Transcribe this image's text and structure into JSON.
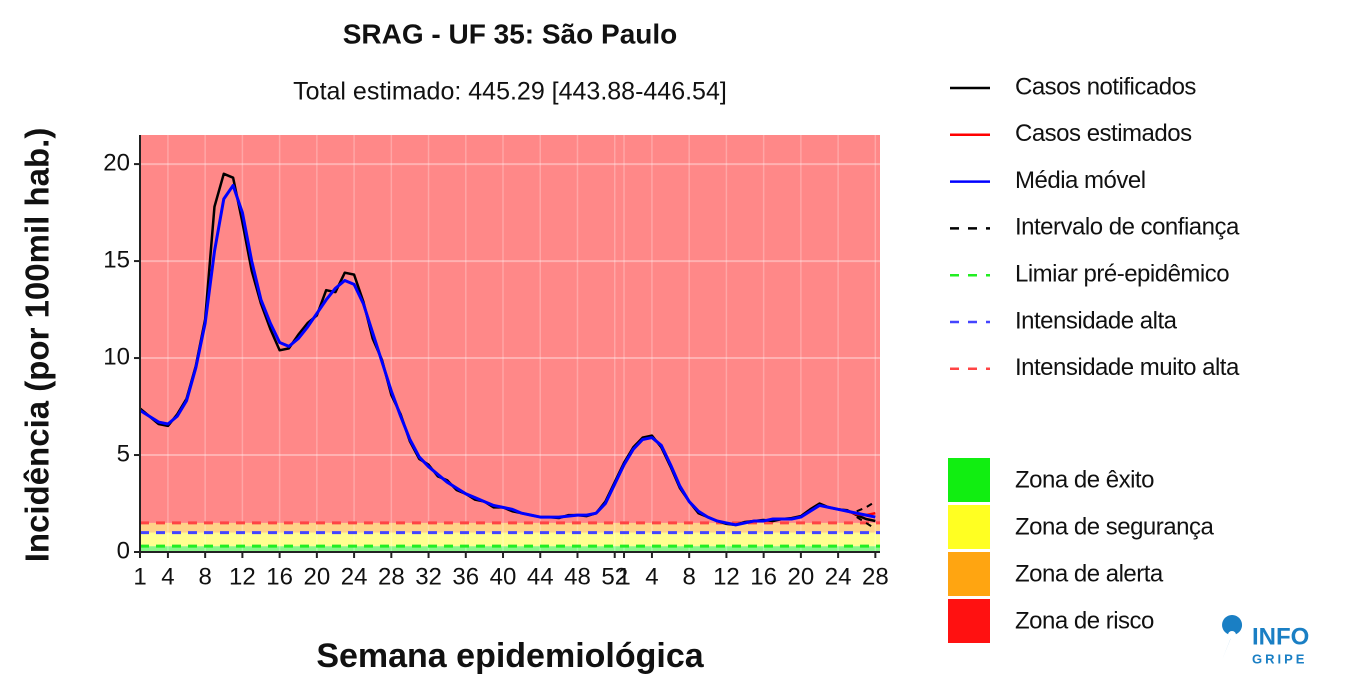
{
  "chart_data": {
    "type": "line",
    "title": "SRAG - UF 35: São Paulo",
    "subtitle": "Total estimado: 445.29 [443.88-446.54]",
    "x_label": "Semana epidemiológica",
    "y_label": "Incidência (por 100mil hab.)",
    "x": [
      1,
      2,
      3,
      4,
      5,
      6,
      7,
      8,
      9,
      10,
      11,
      12,
      13,
      14,
      15,
      16,
      17,
      18,
      19,
      20,
      21,
      22,
      23,
      24,
      25,
      26,
      27,
      28,
      29,
      30,
      31,
      32,
      33,
      34,
      35,
      36,
      37,
      38,
      39,
      40,
      41,
      42,
      43,
      44,
      45,
      46,
      47,
      48,
      49,
      50,
      51,
      52,
      53,
      54,
      55,
      56,
      57,
      58,
      59,
      60,
      61,
      62,
      63,
      64,
      65,
      66,
      67,
      68,
      69,
      70,
      71,
      72,
      73,
      74,
      75,
      76,
      77,
      78,
      79,
      80
    ],
    "xlim": [
      1,
      80.5
    ],
    "xticks": [
      1,
      4,
      8,
      12,
      16,
      20,
      24,
      28,
      32,
      36,
      40,
      44,
      48,
      52,
      {
        "value": 53,
        "label": "1"
      },
      {
        "value": 56,
        "label": "4"
      },
      {
        "value": 60,
        "label": "8"
      },
      {
        "value": 64,
        "label": "12"
      },
      {
        "value": 68,
        "label": "16"
      },
      {
        "value": 72,
        "label": "20"
      },
      {
        "value": 76,
        "label": "24"
      },
      {
        "value": 80,
        "label": "28"
      }
    ],
    "ylim": [
      0,
      21.5
    ],
    "yticks": [
      0,
      5,
      10,
      15,
      20
    ],
    "grid": true,
    "series": [
      {
        "name": "Casos notificados",
        "color": "#000000",
        "values": [
          7.4,
          7.0,
          6.6,
          6.5,
          7.1,
          7.9,
          9.6,
          12.0,
          17.8,
          19.5,
          19.3,
          17.0,
          14.5,
          12.8,
          11.5,
          10.4,
          10.5,
          11.2,
          11.8,
          12.2,
          13.5,
          13.4,
          14.4,
          14.3,
          12.9,
          11.0,
          9.9,
          8.1,
          7.1,
          5.7,
          4.8,
          4.5,
          3.9,
          3.7,
          3.2,
          3.0,
          2.7,
          2.6,
          2.3,
          2.3,
          2.1,
          2.0,
          1.9,
          1.8,
          1.8,
          1.75,
          1.9,
          1.9,
          1.85,
          2.0,
          2.6,
          3.6,
          4.6,
          5.4,
          5.9,
          6.0,
          5.4,
          4.4,
          3.3,
          2.6,
          2.0,
          1.8,
          1.6,
          1.45,
          1.4,
          1.55,
          1.6,
          1.65,
          1.6,
          1.7,
          1.75,
          1.85,
          2.2,
          2.5,
          2.3,
          2.2,
          2.15,
          1.9,
          1.7,
          1.6
        ]
      },
      {
        "name": "Casos estimados",
        "color": "#ff0000",
        "values": [
          null,
          null,
          null,
          null,
          null,
          null,
          null,
          null,
          null,
          null,
          null,
          null,
          null,
          null,
          null,
          null,
          null,
          null,
          null,
          null,
          null,
          null,
          null,
          null,
          null,
          null,
          null,
          null,
          null,
          null,
          null,
          null,
          null,
          null,
          null,
          null,
          null,
          null,
          null,
          null,
          null,
          null,
          null,
          null,
          null,
          null,
          null,
          null,
          null,
          null,
          null,
          null,
          null,
          null,
          null,
          null,
          null,
          null,
          null,
          null,
          null,
          null,
          null,
          null,
          null,
          null,
          null,
          null,
          null,
          null,
          null,
          null,
          null,
          null,
          null,
          null,
          2.1,
          1.95,
          1.9,
          2.0
        ],
        "ci_lower": [
          null,
          null,
          null,
          null,
          null,
          null,
          null,
          null,
          null,
          null,
          null,
          null,
          null,
          null,
          null,
          null,
          null,
          null,
          null,
          null,
          null,
          null,
          null,
          null,
          null,
          null,
          null,
          null,
          null,
          null,
          null,
          null,
          null,
          null,
          null,
          null,
          null,
          null,
          null,
          null,
          null,
          null,
          null,
          null,
          null,
          null,
          null,
          null,
          null,
          null,
          null,
          null,
          null,
          null,
          null,
          null,
          null,
          null,
          null,
          null,
          null,
          null,
          null,
          null,
          null,
          null,
          null,
          null,
          null,
          null,
          null,
          null,
          null,
          null,
          null,
          null,
          null,
          1.8,
          1.5,
          1.2
        ],
        "ci_upper": [
          null,
          null,
          null,
          null,
          null,
          null,
          null,
          null,
          null,
          null,
          null,
          null,
          null,
          null,
          null,
          null,
          null,
          null,
          null,
          null,
          null,
          null,
          null,
          null,
          null,
          null,
          null,
          null,
          null,
          null,
          null,
          null,
          null,
          null,
          null,
          null,
          null,
          null,
          null,
          null,
          null,
          null,
          null,
          null,
          null,
          null,
          null,
          null,
          null,
          null,
          null,
          null,
          null,
          null,
          null,
          null,
          null,
          null,
          null,
          null,
          null,
          null,
          null,
          null,
          null,
          null,
          null,
          null,
          null,
          null,
          null,
          null,
          null,
          null,
          null,
          null,
          null,
          2.1,
          2.3,
          2.6
        ]
      },
      {
        "name": "Média móvel",
        "color": "#0000ff",
        "values": [
          7.3,
          7.0,
          6.7,
          6.6,
          7.0,
          7.8,
          9.5,
          11.8,
          15.5,
          18.2,
          18.9,
          17.5,
          15.0,
          13.0,
          11.8,
          10.8,
          10.6,
          11.0,
          11.6,
          12.3,
          13.0,
          13.6,
          14.0,
          13.8,
          12.8,
          11.3,
          9.8,
          8.3,
          7.0,
          5.8,
          4.9,
          4.4,
          4.0,
          3.6,
          3.3,
          3.0,
          2.8,
          2.6,
          2.4,
          2.3,
          2.2,
          2.0,
          1.9,
          1.8,
          1.8,
          1.8,
          1.85,
          1.9,
          1.9,
          2.0,
          2.5,
          3.5,
          4.5,
          5.3,
          5.8,
          5.9,
          5.5,
          4.5,
          3.4,
          2.6,
          2.1,
          1.8,
          1.6,
          1.5,
          1.4,
          1.5,
          1.6,
          1.6,
          1.7,
          1.7,
          1.7,
          1.8,
          2.1,
          2.4,
          2.3,
          2.2,
          2.1,
          2.0,
          1.9,
          1.8
        ]
      }
    ],
    "ci_name": "Intervalo de confiança",
    "ci_color": "#000000",
    "thresholds": [
      {
        "name": "Limiar pré-epidêmico",
        "color": "#22ee22",
        "value": 0.3
      },
      {
        "name": "Intensidade alta",
        "color": "#4444ff",
        "value": 1.0
      },
      {
        "name": "Intensidade muito alta",
        "color": "#ff4444",
        "value": 1.5
      }
    ],
    "zones": [
      {
        "name": "Zona de êxito",
        "color": "#11ee11"
      },
      {
        "name": "Zona de segurança",
        "color": "#ffff22"
      },
      {
        "name": "Zona de alerta",
        "color": "#ffa511"
      },
      {
        "name": "Zona de risco",
        "color": "#ff1111"
      }
    ],
    "logo": {
      "top": "INFO",
      "bottom": "GRIPE"
    }
  }
}
